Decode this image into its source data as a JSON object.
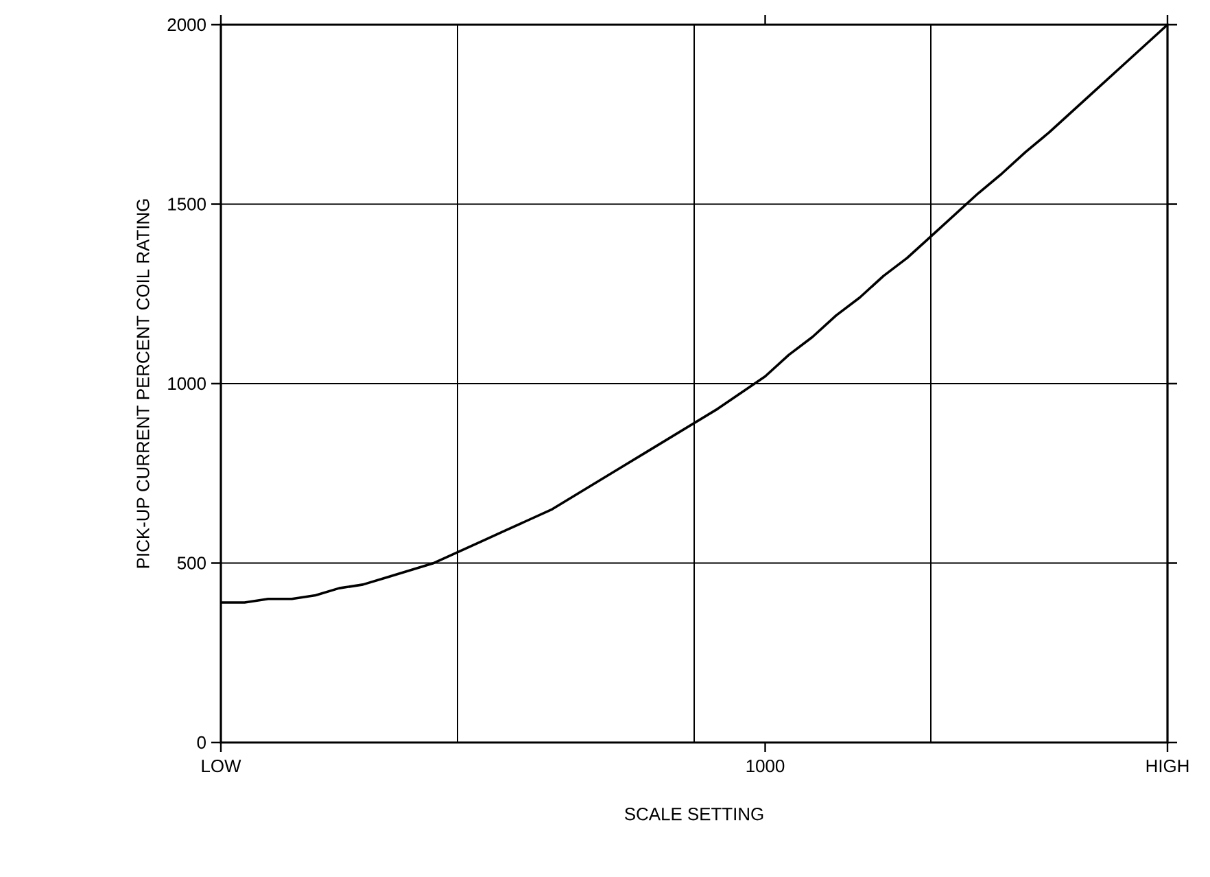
{
  "chart_data": {
    "type": "line",
    "xlabel": "SCALE SETTING",
    "ylabel": "PICK-UP CURRENT PERCENT COIL RATING",
    "categories": [
      "LOW",
      null,
      null,
      null,
      null,
      null,
      null,
      null,
      null,
      null,
      null,
      null,
      null,
      null,
      null,
      null,
      null,
      null,
      null,
      null,
      null,
      null,
      null,
      "1000",
      null,
      null,
      null,
      null,
      null,
      null,
      null,
      null,
      null,
      null,
      null,
      null,
      null,
      null,
      null,
      null,
      "HIGH"
    ],
    "values": [
      390,
      390,
      400,
      400,
      410,
      430,
      440,
      460,
      480,
      500,
      530,
      560,
      590,
      620,
      650,
      690,
      730,
      770,
      810,
      850,
      890,
      930,
      975,
      1020,
      1080,
      1130,
      1190,
      1240,
      1300,
      1350,
      1410,
      1470,
      1530,
      1585,
      1645,
      1700,
      1760,
      1820,
      1880,
      1940,
      2000
    ],
    "color": "#000000",
    "ylim": [
      0,
      2000
    ],
    "yticks": [
      0,
      500,
      1000,
      1500,
      2000
    ],
    "grid": true,
    "marker": "none",
    "line_style": "solid"
  }
}
